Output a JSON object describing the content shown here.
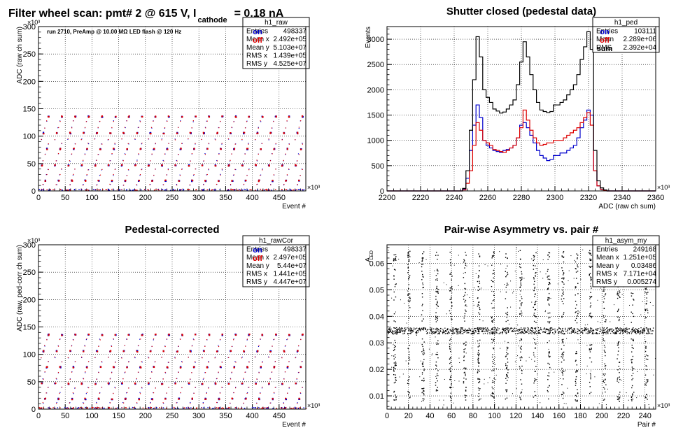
{
  "page": {
    "title_main": "Filter wheel scan: pmt#   2 @   615 V, I",
    "title_sub": "cathode",
    "title_tail": "= 0.18 nA"
  },
  "chart_data": [
    {
      "id": "raw",
      "type": "scatter",
      "title": "",
      "xlabel": "Event #",
      "ylabel": "ADC (raw ch sum)",
      "x_multiplier": "×10³",
      "y_multiplier": "×10³",
      "xlim": [
        0,
        500
      ],
      "ylim": [
        0,
        300
      ],
      "x_ticks": [
        0,
        50,
        100,
        150,
        200,
        250,
        300,
        350,
        400,
        450
      ],
      "y_ticks": [
        0,
        50,
        100,
        150,
        200,
        250,
        300
      ],
      "annotation": "run 2710, PreAmp @ 10.00 MΩ LED flash @  120 Hz",
      "legend": [
        {
          "name": "on",
          "color": "#0000cc"
        },
        {
          "name": "off",
          "color": "#dd0000"
        }
      ],
      "stats": {
        "name": "h1_raw",
        "rows": [
          [
            "Entries",
            "498337"
          ],
          [
            "Mean x",
            "2.492e+05"
          ],
          [
            "Mean y",
            "5.103e+07"
          ],
          [
            "RMS x",
            "1.439e+05"
          ],
          [
            "RMS y",
            "4.525e+07"
          ]
        ]
      },
      "levels": [
        3,
        12,
        20,
        30,
        40,
        48,
        56,
        68,
        78,
        87,
        95,
        107,
        116,
        128,
        137
      ],
      "period_events": 25
    },
    {
      "id": "ped",
      "type": "line",
      "title": "Shutter closed (pedestal data)",
      "xlabel": "ADC (raw ch sum)",
      "ylabel": "Events",
      "x_multiplier": "×10³",
      "xlim": [
        2200,
        2360
      ],
      "ylim": [
        0,
        3250
      ],
      "x_ticks": [
        2200,
        2220,
        2240,
        2260,
        2280,
        2300,
        2320,
        2340,
        2360
      ],
      "y_ticks": [
        0,
        500,
        1000,
        1500,
        2000,
        2500,
        3000
      ],
      "legend": [
        {
          "name": "on",
          "color": "#0000cc"
        },
        {
          "name": "off",
          "color": "#dd0000"
        },
        {
          "name": "sum",
          "color": "#000000"
        }
      ],
      "stats": {
        "name": "h1_ped",
        "rows": [
          [
            "Entries",
            "103111"
          ],
          [
            "Mean",
            "2.289e+06"
          ],
          [
            "RMS",
            "2.392e+04"
          ]
        ]
      },
      "x": [
        2246,
        2248,
        2250,
        2252,
        2254,
        2256,
        2258,
        2260,
        2262,
        2264,
        2266,
        2268,
        2270,
        2272,
        2274,
        2276,
        2278,
        2280,
        2282,
        2284,
        2286,
        2288,
        2290,
        2292,
        2294,
        2296,
        2298,
        2300,
        2302,
        2304,
        2306,
        2308,
        2310,
        2312,
        2314,
        2316,
        2318,
        2320,
        2322,
        2324,
        2326,
        2328,
        2330
      ],
      "series": [
        {
          "name": "on",
          "color": "#0000cc",
          "values": [
            30,
            250,
            800,
            1300,
            1700,
            1450,
            1000,
            900,
            850,
            800,
            780,
            760,
            800,
            820,
            850,
            900,
            1050,
            1300,
            1350,
            1250,
            1100,
            950,
            800,
            700,
            650,
            600,
            620,
            700,
            700,
            750,
            750,
            800,
            850,
            900,
            1050,
            1250,
            1400,
            1600,
            1500,
            400,
            100,
            30,
            10
          ]
        },
        {
          "name": "off",
          "color": "#dd0000",
          "values": [
            20,
            150,
            400,
            900,
            1350,
            1200,
            1000,
            950,
            900,
            820,
            800,
            780,
            760,
            800,
            850,
            900,
            1050,
            1250,
            1600,
            1400,
            1200,
            1050,
            950,
            900,
            920,
            950,
            950,
            1000,
            1000,
            1000,
            1050,
            1100,
            1150,
            1200,
            1250,
            1350,
            1450,
            1550,
            1300,
            400,
            100,
            30,
            10
          ]
        },
        {
          "name": "sum",
          "color": "#000000",
          "values": [
            50,
            400,
            1200,
            2200,
            3050,
            2650,
            2000,
            1850,
            1750,
            1620,
            1580,
            1540,
            1560,
            1620,
            1700,
            1800,
            2100,
            2550,
            2950,
            2650,
            2300,
            2000,
            1750,
            1600,
            1570,
            1550,
            1570,
            1700,
            1700,
            1750,
            1800,
            1900,
            2000,
            2100,
            2300,
            2600,
            2850,
            3150,
            2800,
            800,
            200,
            60,
            20
          ]
        }
      ]
    },
    {
      "id": "rawcor",
      "type": "scatter",
      "title": "Pedestal-corrected",
      "xlabel": "Event #",
      "ylabel": "ADC (raw, ped-corr ch sum)",
      "x_multiplier": "×10³",
      "y_multiplier": "×10³",
      "xlim": [
        0,
        500
      ],
      "ylim": [
        0,
        300
      ],
      "x_ticks": [
        0,
        50,
        100,
        150,
        200,
        250,
        300,
        350,
        400,
        450
      ],
      "y_ticks": [
        0,
        50,
        100,
        150,
        200,
        250,
        300
      ],
      "legend": [
        {
          "name": "on",
          "color": "#0000cc"
        },
        {
          "name": "off",
          "color": "#dd0000"
        }
      ],
      "stats": {
        "name": "h1_rawCor",
        "rows": [
          [
            "Entries",
            "498337"
          ],
          [
            "Mean x",
            "2.497e+05"
          ],
          [
            "Mean y",
            "5.44e+07"
          ],
          [
            "RMS x",
            "1.441e+05"
          ],
          [
            "RMS y",
            "4.447e+07"
          ]
        ]
      },
      "levels": [
        3,
        12,
        20,
        30,
        40,
        48,
        56,
        68,
        78,
        87,
        95,
        107,
        116,
        128,
        137
      ],
      "period_events": 25
    },
    {
      "id": "asym",
      "type": "scatter",
      "title": "Pair-wise Asymmetry vs. pair #",
      "xlabel": "Pair #",
      "ylabel": "A",
      "ylabel_sub": "LED",
      "x_multiplier": "×10³",
      "xlim": [
        0,
        250
      ],
      "ylim": [
        0.005,
        0.067
      ],
      "x_ticks": [
        0,
        20,
        40,
        60,
        80,
        100,
        120,
        140,
        160,
        180,
        200,
        220,
        240
      ],
      "y_ticks": [
        0.01,
        0.02,
        0.03,
        0.04,
        0.05,
        0.06
      ],
      "stats": {
        "name": "h1_asym_my",
        "rows": [
          [
            "Entries",
            "249168"
          ],
          [
            "Mean x",
            "1.251e+05"
          ],
          [
            "Mean y",
            "0.03486"
          ],
          [
            "RMS x",
            "7.171e+04"
          ],
          [
            "RMS y",
            "0.005274"
          ]
        ]
      },
      "band_center": 0.0347,
      "band_halfwidth": 0.0012,
      "spikes": [
        7,
        20,
        33,
        46,
        59,
        72,
        85,
        98,
        111,
        124,
        137,
        150,
        163,
        176,
        189,
        202,
        215,
        228,
        241
      ]
    }
  ]
}
